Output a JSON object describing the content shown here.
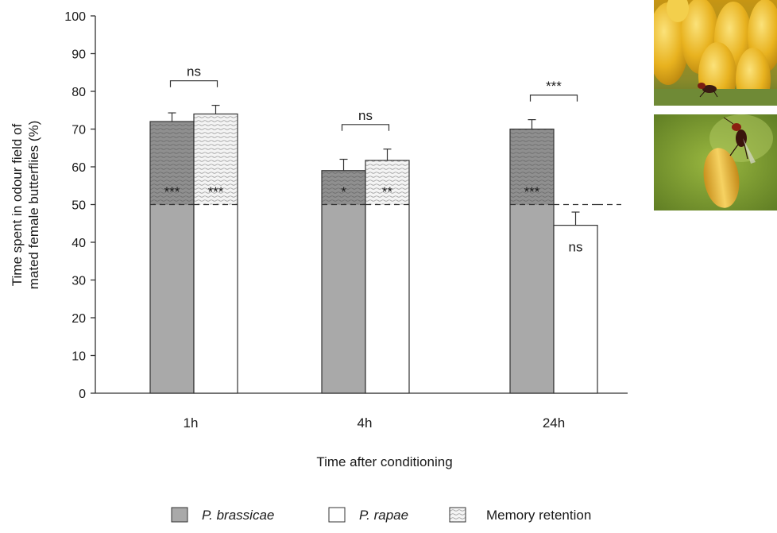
{
  "chart_data": {
    "type": "bar",
    "xlabel": "Time after conditioning",
    "ylabel_lines": [
      "Time spent in odour field of",
      "mated female butterflies (%)"
    ],
    "ylim": [
      0,
      100
    ],
    "yticks": [
      0,
      10,
      20,
      30,
      40,
      50,
      60,
      70,
      80,
      90,
      100
    ],
    "categories": [
      "1h",
      "4h",
      "24h"
    ],
    "baseline": 50,
    "series": [
      {
        "name": "P. brassicae",
        "values": [
          72,
          59,
          70
        ],
        "errors": [
          2.3,
          3,
          2.5
        ],
        "color": "#a9a9a9"
      },
      {
        "name": "P. rapae",
        "values": [
          74,
          61.7,
          44.5
        ],
        "errors": [
          2.3,
          3,
          3.5
        ],
        "color": "#ffffff"
      }
    ],
    "legend": [
      {
        "label": "P. brassicae",
        "italic": true,
        "swatch": "grey"
      },
      {
        "label": "P. rapae",
        "italic": true,
        "swatch": "white"
      },
      {
        "label": "Memory retention",
        "italic": false,
        "swatch": "pattern"
      }
    ],
    "legend_position": "bottom",
    "bar_annotations": [
      [
        "***",
        "***"
      ],
      [
        "*",
        "**"
      ],
      [
        "***",
        "ns"
      ]
    ],
    "comparisons": [
      "ns",
      "ns",
      "***"
    ]
  },
  "photos": [
    {
      "name": "butterfly-eggs-wasp-photo"
    },
    {
      "name": "wasp-on-egg-photo"
    }
  ]
}
